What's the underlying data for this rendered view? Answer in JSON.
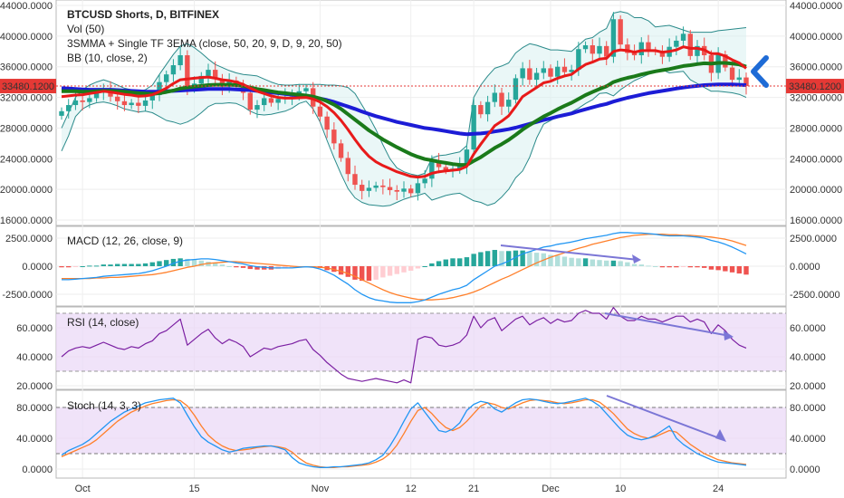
{
  "header": {
    "title": "BTCUSD Shorts, D, BITFINEX",
    "lines": [
      "Vol (50)",
      "3SMMA + Single TF 3EMA (close, 50, 20, 9, D, 9, 20, 50)",
      "BB (10, close, 2)"
    ]
  },
  "panes": {
    "macd_label": "MACD (12, 26, close, 9)",
    "rsi_label": "RSI (14, close)",
    "stoch_label": "Stoch (14, 3, 3)"
  },
  "price_tag": "33480.1200",
  "colors": {
    "up": "#26a69a",
    "down": "#ef5350",
    "ema9": "#e81a1a",
    "ema20": "#1a7a1a",
    "ema50": "#1c1cd6",
    "bb": "#2a8a8a",
    "macd": "#2196f3",
    "signal": "#ff7f2a",
    "rsi": "#7b1fa2",
    "band": "#e9d7f7",
    "arrow": "#1e6bd6",
    "annot": "#7b76d6"
  },
  "chart_data": [
    {
      "type": "candlestick",
      "title": "BTCUSD Shorts, D, BITFINEX",
      "x_ticks": [
        "Oct",
        "15",
        "Nov",
        "12",
        "21",
        "Dec",
        "10",
        "24"
      ],
      "y_ticks": [
        "44000.0000",
        "40000.0000",
        "36000.0000",
        "32000.0000",
        "28000.0000",
        "24000.0000",
        "20000.0000",
        "16000.0000"
      ],
      "ylim": [
        16000,
        44000
      ],
      "last_price": 33480.12,
      "close": [
        30200,
        31000,
        31600,
        31400,
        31900,
        32600,
        33000,
        32100,
        31500,
        31000,
        31300,
        30900,
        31600,
        32300,
        34000,
        35000,
        36200,
        37500,
        33400,
        33800,
        34800,
        35600,
        34400,
        33400,
        34200,
        33500,
        32600,
        30400,
        31000,
        31900,
        31300,
        31800,
        32100,
        32400,
        32800,
        33200,
        30800,
        29500,
        27800,
        26000,
        24100,
        22000,
        20600,
        19800,
        20200,
        20500,
        20300,
        19900,
        19700,
        20100,
        19500,
        20800,
        21400,
        23800,
        22900,
        22500,
        22700,
        23100,
        25200,
        31000,
        29800,
        31400,
        32600,
        30800,
        31700,
        34500,
        35800,
        34300,
        35200,
        35800,
        34700,
        36000,
        35300,
        35600,
        38300,
        38800,
        37700,
        38700,
        37300,
        42200,
        38900,
        37800,
        37500,
        39200,
        38100,
        38000,
        37300,
        38600,
        39400,
        40300,
        37400,
        38700,
        37500,
        35200,
        37600,
        35900,
        34300,
        34600,
        33480
      ],
      "ema9": [
        32100,
        32200,
        32300,
        32350,
        32500,
        32650,
        32800,
        32700,
        32550,
        32400,
        32300,
        32150,
        32200,
        32350,
        32750,
        33200,
        33800,
        34300,
        34400,
        34500,
        34600,
        34650,
        34500,
        34300,
        34200,
        34000,
        33700,
        33200,
        32800,
        32500,
        32200,
        32000,
        31900,
        31900,
        31950,
        32000,
        31800,
        31400,
        30800,
        30000,
        29000,
        27800,
        26500,
        25300,
        24300,
        23600,
        23100,
        22700,
        22300,
        22000,
        21700,
        21600,
        21700,
        22100,
        22300,
        22400,
        22500,
        22600,
        23000,
        24600,
        25900,
        27100,
        28300,
        28900,
        29600,
        30800,
        32100,
        32700,
        33300,
        33900,
        34100,
        34500,
        34800,
        35000,
        35700,
        36300,
        36600,
        37000,
        37100,
        38000,
        38200,
        38100,
        37900,
        38100,
        38100,
        38100,
        37900,
        38000,
        38200,
        38600,
        38400,
        38400,
        38200,
        37700,
        37700,
        37400,
        36900,
        36500,
        35800
      ],
      "ema20": [
        32800,
        32800,
        32800,
        32750,
        32750,
        32800,
        32850,
        32850,
        32800,
        32750,
        32650,
        32550,
        32500,
        32450,
        32550,
        32700,
        32900,
        33150,
        33300,
        33400,
        33500,
        33600,
        33650,
        33650,
        33650,
        33600,
        33500,
        33300,
        33100,
        32950,
        32800,
        32650,
        32550,
        32450,
        32350,
        32250,
        32100,
        31850,
        31500,
        31050,
        30500,
        29800,
        29100,
        28400,
        27700,
        27100,
        26500,
        26000,
        25500,
        25050,
        24600,
        24250,
        23950,
        23800,
        23600,
        23450,
        23300,
        23200,
        23200,
        23700,
        24200,
        24800,
        25400,
        25900,
        26450,
        27100,
        27800,
        28400,
        28950,
        29500,
        29950,
        30450,
        30900,
        31300,
        31800,
        32300,
        32700,
        33100,
        33450,
        34000,
        34300,
        34550,
        34750,
        35000,
        35200,
        35400,
        35550,
        35700,
        35900,
        36100,
        36200,
        36350,
        36450,
        36400,
        36500,
        36500,
        36400,
        36300,
        36000
      ],
      "ema50": [
        33200,
        33150,
        33100,
        33050,
        33000,
        33000,
        33000,
        33000,
        32950,
        32900,
        32850,
        32800,
        32750,
        32750,
        32750,
        32800,
        32850,
        32900,
        32950,
        33000,
        33050,
        33100,
        33100,
        33100,
        33100,
        33050,
        33000,
        32950,
        32850,
        32750,
        32650,
        32550,
        32450,
        32350,
        32250,
        32150,
        32000,
        31850,
        31650,
        31400,
        31100,
        30800,
        30500,
        30150,
        29850,
        29550,
        29300,
        29050,
        28800,
        28600,
        28400,
        28200,
        28000,
        27900,
        27750,
        27600,
        27450,
        27300,
        27200,
        27250,
        27300,
        27400,
        27550,
        27700,
        27850,
        28050,
        28300,
        28550,
        28800,
        29050,
        29250,
        29500,
        29700,
        29900,
        30200,
        30450,
        30700,
        30950,
        31150,
        31450,
        31700,
        31950,
        32150,
        32350,
        32550,
        32700,
        32850,
        33000,
        33150,
        33300,
        33400,
        33500,
        33600,
        33650,
        33700,
        33700,
        33700,
        33650,
        33600
      ],
      "bb_upper": [
        28000,
        30000,
        32000,
        33000,
        33600,
        34000,
        34300,
        34000,
        33600,
        33200,
        33000,
        32800,
        33000,
        33600,
        35000,
        36300,
        37600,
        38700,
        39000,
        38500,
        37800,
        37000,
        36300,
        35900,
        35500,
        35200,
        35000,
        34900,
        34800,
        34400,
        34000,
        33700,
        33600,
        33600,
        33700,
        33700,
        33700,
        33700,
        33600,
        33600,
        33500,
        33300,
        32500,
        31000,
        29500,
        27800,
        25800,
        24000,
        22800,
        22300,
        22000,
        21800,
        22100,
        24100,
        24400,
        24500,
        24700,
        24900,
        25700,
        32000,
        33600,
        34800,
        35800,
        36100,
        36500,
        37800,
        38500,
        39000,
        38800,
        38500,
        38200,
        38200,
        38100,
        38000,
        38800,
        39600,
        39800,
        40500,
        41000,
        43000,
        43200,
        43000,
        42400,
        42400,
        42000,
        41200,
        41300,
        41400,
        41100,
        40800,
        40500,
        40500,
        40500,
        40500,
        40700,
        40800,
        40900,
        41000,
        41100
      ],
      "bb_lower": [
        25000,
        27000,
        29500,
        30500,
        31000,
        31300,
        31400,
        31200,
        30900,
        30500,
        30300,
        30100,
        30200,
        30000,
        29500,
        29000,
        28800,
        28500,
        28800,
        29300,
        30000,
        30800,
        31200,
        31200,
        31300,
        31200,
        30800,
        30200,
        29800,
        29700,
        29800,
        30000,
        30200,
        30600,
        31200,
        31500,
        30500,
        28800,
        26400,
        24100,
        22000,
        20100,
        18900,
        18300,
        18000,
        17900,
        17800,
        17900,
        18300,
        18700,
        19000,
        19200,
        19500,
        18600,
        18900,
        19200,
        19400,
        19500,
        19000,
        18500,
        18300,
        17900,
        18200,
        19000,
        20000,
        21500,
        22400,
        24200,
        26700,
        28500,
        29000,
        29500,
        29800,
        30100,
        30600,
        31200,
        31700,
        32500,
        32600,
        32200,
        33000,
        33600,
        34200,
        34600,
        35000,
        35400,
        35600,
        35200,
        35300,
        35400,
        34300,
        33800,
        33300,
        32800,
        32800,
        32700,
        32600,
        32400,
        32000
      ]
    },
    {
      "type": "line",
      "title": "MACD (12, 26, close, 9)",
      "y_ticks": [
        "2500.0000",
        "0.0000",
        "-2500.0000"
      ],
      "ylim": [
        -3200,
        3200
      ],
      "series": [
        {
          "name": "MACD",
          "values": [
            -1200,
            -1200,
            -1150,
            -1100,
            -1050,
            -1000,
            -900,
            -850,
            -800,
            -750,
            -700,
            -650,
            -550,
            -400,
            -200,
            0,
            250,
            450,
            550,
            600,
            650,
            650,
            600,
            500,
            400,
            300,
            200,
            50,
            -50,
            -100,
            -150,
            -150,
            -150,
            -150,
            -100,
            -50,
            -100,
            -250,
            -500,
            -800,
            -1200,
            -1600,
            -2100,
            -2500,
            -2800,
            -3000,
            -3100,
            -3200,
            -3250,
            -3250,
            -3250,
            -3150,
            -3000,
            -2750,
            -2500,
            -2300,
            -2100,
            -1950,
            -1700,
            -1200,
            -800,
            -400,
            0,
            200,
            450,
            800,
            1100,
            1300,
            1500,
            1700,
            1800,
            1950,
            2050,
            2150,
            2300,
            2450,
            2550,
            2650,
            2750,
            2900,
            3000,
            3000,
            2950,
            2950,
            2900,
            2850,
            2750,
            2700,
            2700,
            2700,
            2650,
            2600,
            2500,
            2300,
            2150,
            1950,
            1700,
            1400,
            1100
          ]
        },
        {
          "name": "Signal",
          "values": [
            -1100,
            -1100,
            -1100,
            -1100,
            -1100,
            -1050,
            -1050,
            -1000,
            -1000,
            -950,
            -900,
            -850,
            -800,
            -750,
            -650,
            -550,
            -400,
            -250,
            -100,
            0,
            150,
            250,
            300,
            350,
            400,
            400,
            350,
            300,
            250,
            200,
            150,
            100,
            50,
            0,
            -50,
            -50,
            -50,
            -100,
            -150,
            -300,
            -450,
            -650,
            -900,
            -1200,
            -1500,
            -1800,
            -2100,
            -2350,
            -2550,
            -2700,
            -2850,
            -2950,
            -3000,
            -3000,
            -2950,
            -2900,
            -2800,
            -2650,
            -2500,
            -2300,
            -2050,
            -1750,
            -1450,
            -1150,
            -900,
            -600,
            -300,
            0,
            300,
            550,
            800,
            1000,
            1200,
            1400,
            1600,
            1750,
            1950,
            2100,
            2250,
            2400,
            2550,
            2650,
            2750,
            2800,
            2850,
            2850,
            2850,
            2800,
            2800,
            2750,
            2750,
            2700,
            2650,
            2600,
            2500,
            2400,
            2250,
            2050,
            1850
          ]
        }
      ]
    },
    {
      "type": "line",
      "title": "RSI (14, close)",
      "y_ticks": [
        "60.0000",
        "40.0000",
        "20.0000"
      ],
      "ylim": [
        18,
        76
      ],
      "series": [
        {
          "name": "RSI",
          "values": [
            40,
            44,
            46,
            47,
            46,
            48,
            50,
            48,
            46,
            45,
            47,
            46,
            49,
            51,
            56,
            58,
            62,
            66,
            48,
            52,
            56,
            59,
            53,
            49,
            52,
            50,
            47,
            40,
            43,
            46,
            45,
            47,
            48,
            49,
            51,
            52,
            45,
            41,
            36,
            32,
            28,
            25,
            24,
            23,
            24,
            25,
            24,
            23,
            22,
            24,
            22,
            52,
            54,
            53,
            48,
            47,
            48,
            50,
            55,
            68,
            60,
            65,
            67,
            58,
            62,
            66,
            68,
            62,
            65,
            67,
            63,
            66,
            64,
            65,
            70,
            72,
            70,
            70,
            66,
            74,
            68,
            65,
            65,
            68,
            66,
            66,
            64,
            66,
            68,
            68,
            64,
            66,
            64,
            56,
            62,
            58,
            52,
            48,
            46
          ]
        }
      ]
    },
    {
      "type": "line",
      "title": "Stoch (14, 3, 3)",
      "y_ticks": [
        "80.0000",
        "40.0000",
        "0.0000"
      ],
      "ylim": [
        -2,
        98
      ],
      "series": [
        {
          "name": "%K",
          "values": [
            18,
            24,
            28,
            32,
            38,
            46,
            54,
            62,
            68,
            74,
            78,
            82,
            86,
            88,
            90,
            91,
            92,
            86,
            70,
            55,
            42,
            35,
            30,
            25,
            22,
            24,
            27,
            28,
            29,
            30,
            30,
            28,
            25,
            15,
            8,
            5,
            3,
            2,
            2,
            3,
            3,
            4,
            5,
            6,
            8,
            12,
            18,
            30,
            45,
            62,
            78,
            86,
            74,
            62,
            50,
            48,
            52,
            60,
            76,
            84,
            88,
            86,
            78,
            74,
            80,
            86,
            90,
            91,
            90,
            88,
            86,
            85,
            86,
            88,
            90,
            92,
            88,
            82,
            72,
            62,
            52,
            44,
            40,
            38,
            40,
            44,
            50,
            56,
            40,
            32,
            26,
            20,
            16,
            12,
            9,
            8,
            7,
            6,
            5
          ]
        },
        {
          "name": "%D",
          "values": [
            16,
            20,
            24,
            28,
            32,
            38,
            46,
            54,
            62,
            68,
            74,
            78,
            82,
            85,
            87,
            89,
            90,
            89,
            82,
            70,
            56,
            44,
            36,
            30,
            26,
            24,
            25,
            26,
            28,
            29,
            30,
            29,
            27,
            22,
            14,
            8,
            5,
            3,
            2,
            2,
            3,
            3,
            4,
            5,
            6,
            9,
            13,
            20,
            31,
            46,
            62,
            76,
            80,
            72,
            62,
            54,
            50,
            54,
            62,
            72,
            82,
            86,
            84,
            80,
            78,
            82,
            86,
            89,
            90,
            89,
            88,
            86,
            85,
            86,
            88,
            90,
            90,
            87,
            80,
            72,
            62,
            52,
            46,
            42,
            40,
            42,
            46,
            50,
            48,
            40,
            32,
            26,
            20,
            16,
            12,
            10,
            8,
            7,
            6
          ]
        }
      ]
    }
  ]
}
